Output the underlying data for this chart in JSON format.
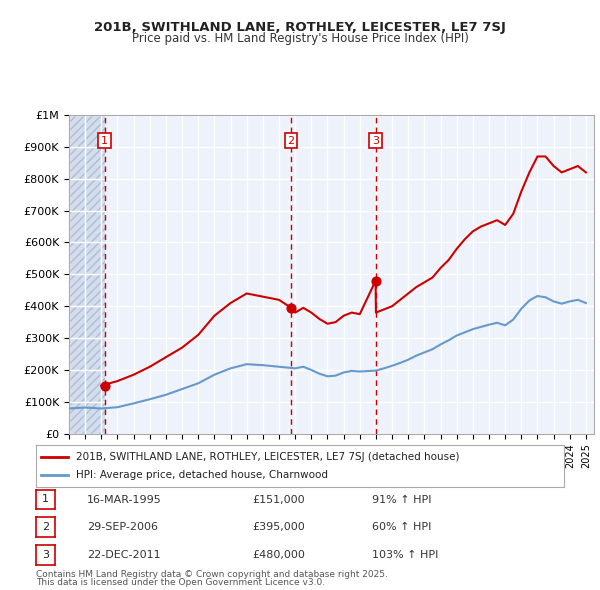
{
  "title1": "201B, SWITHLAND LANE, ROTHLEY, LEICESTER, LE7 7SJ",
  "title2": "Price paid vs. HM Land Registry's House Price Index (HPI)",
  "legend_line1": "201B, SWITHLAND LANE, ROTHLEY, LEICESTER, LE7 7SJ (detached house)",
  "legend_line2": "HPI: Average price, detached house, Charnwood",
  "footnote1": "Contains HM Land Registry data © Crown copyright and database right 2025.",
  "footnote2": "This data is licensed under the Open Government Licence v3.0.",
  "sale_dates": [
    "16-MAR-1995",
    "29-SEP-2006",
    "22-DEC-2011"
  ],
  "sale_prices": [
    151000,
    395000,
    480000
  ],
  "sale_hpi_pct": [
    "91% ↑ HPI",
    "60% ↑ HPI",
    "103% ↑ HPI"
  ],
  "sale_years": [
    1995.21,
    2006.75,
    2011.98
  ],
  "ylim": [
    0,
    1000000
  ],
  "xlim_start": 1993,
  "xlim_end": 2025.5,
  "background_color": "#eef3fb",
  "hatch_color": "#c8d4e8",
  "grid_color": "#ffffff",
  "red_line_color": "#cc0000",
  "blue_line_color": "#6699cc",
  "sale_marker_color": "#cc0000",
  "vline_color": "#cc0000",
  "box_color": "#cc0000",
  "hpi_red_line": {
    "years": [
      1995.0,
      1996.0,
      1997.0,
      1998.0,
      1999.0,
      2000.0,
      2001.0,
      2002.0,
      2003.0,
      2004.0,
      2005.0,
      2006.0,
      2006.75,
      2007.0,
      2007.5,
      2008.0,
      2008.5,
      2009.0,
      2009.5,
      2010.0,
      2010.5,
      2011.0,
      2011.98,
      2012.0,
      2012.5,
      2013.0,
      2013.5,
      2014.0,
      2014.5,
      2015.0,
      2015.5,
      2016.0,
      2016.5,
      2017.0,
      2017.5,
      2018.0,
      2018.5,
      2019.0,
      2019.5,
      2020.0,
      2020.5,
      2021.0,
      2021.5,
      2022.0,
      2022.5,
      2023.0,
      2023.5,
      2024.0,
      2024.5,
      2025.0
    ],
    "values": [
      151000,
      165000,
      185000,
      210000,
      240000,
      270000,
      310000,
      370000,
      410000,
      440000,
      430000,
      420000,
      395000,
      380000,
      395000,
      380000,
      360000,
      345000,
      350000,
      370000,
      380000,
      375000,
      480000,
      380000,
      390000,
      400000,
      420000,
      440000,
      460000,
      475000,
      490000,
      520000,
      545000,
      580000,
      610000,
      635000,
      650000,
      660000,
      670000,
      655000,
      690000,
      760000,
      820000,
      870000,
      870000,
      840000,
      820000,
      830000,
      840000,
      820000
    ]
  },
  "hpi_blue_line": {
    "years": [
      1993.0,
      1994.0,
      1995.0,
      1996.0,
      1997.0,
      1998.0,
      1999.0,
      2000.0,
      2001.0,
      2002.0,
      2003.0,
      2004.0,
      2005.0,
      2006.0,
      2007.0,
      2007.5,
      2008.0,
      2008.5,
      2009.0,
      2009.5,
      2010.0,
      2010.5,
      2011.0,
      2012.0,
      2012.5,
      2013.0,
      2013.5,
      2014.0,
      2014.5,
      2015.0,
      2015.5,
      2016.0,
      2016.5,
      2017.0,
      2017.5,
      2018.0,
      2018.5,
      2019.0,
      2019.5,
      2020.0,
      2020.5,
      2021.0,
      2021.5,
      2022.0,
      2022.5,
      2023.0,
      2023.5,
      2024.0,
      2024.5,
      2025.0
    ],
    "values": [
      79000,
      82000,
      79000,
      83000,
      95000,
      108000,
      122000,
      140000,
      158000,
      185000,
      205000,
      218000,
      215000,
      210000,
      205000,
      210000,
      200000,
      188000,
      180000,
      182000,
      192000,
      197000,
      195000,
      198000,
      205000,
      213000,
      222000,
      232000,
      245000,
      255000,
      265000,
      280000,
      293000,
      308000,
      318000,
      328000,
      335000,
      342000,
      348000,
      340000,
      358000,
      392000,
      418000,
      432000,
      428000,
      415000,
      408000,
      415000,
      420000,
      410000
    ]
  }
}
